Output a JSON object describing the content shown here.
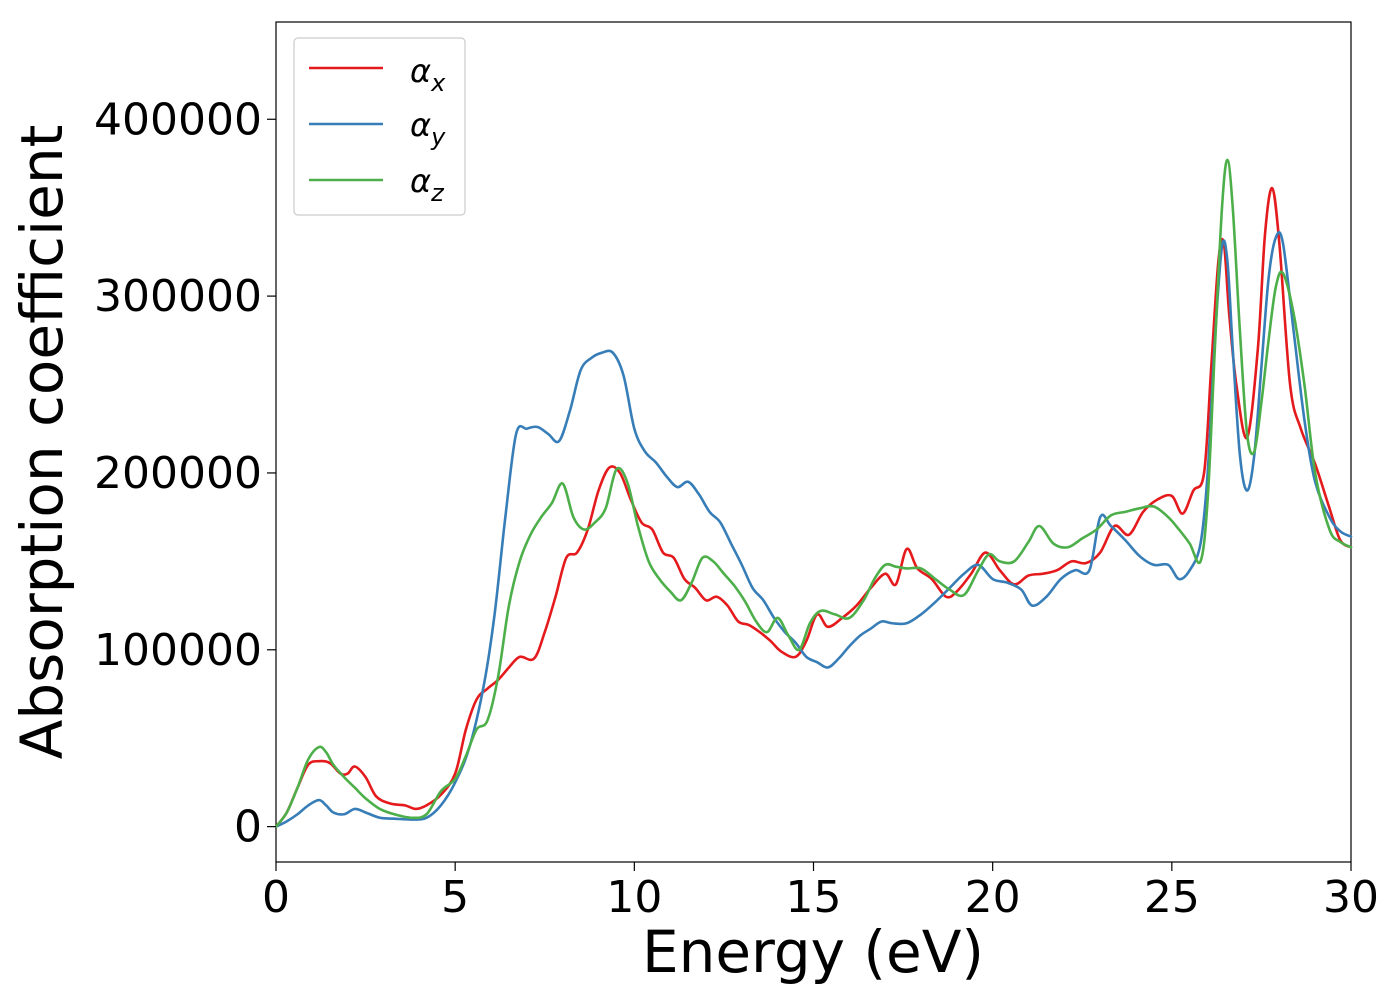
{
  "chart_data": {
    "type": "line",
    "title": "",
    "xlabel": "Energy (eV)",
    "ylabel": "Absorption coefficient",
    "xlim": [
      0,
      30
    ],
    "ylim": [
      -20000,
      455000
    ],
    "x_ticks": [
      0,
      5,
      10,
      15,
      20,
      25,
      30
    ],
    "y_ticks": [
      0,
      100000,
      200000,
      300000,
      400000
    ],
    "x_tick_labels": [
      "0",
      "5",
      "10",
      "15",
      "20",
      "25",
      "30"
    ],
    "y_tick_labels": [
      "0",
      "100000",
      "200000",
      "300000",
      "400000"
    ],
    "grid": false,
    "legend_position": "top-left",
    "series": [
      {
        "name": "α",
        "subscript": "x",
        "color": "#e41a1c",
        "x": [
          0,
          0.3,
          0.6,
          0.9,
          1.2,
          1.5,
          1.8,
          2.0,
          2.2,
          2.5,
          2.8,
          3.2,
          3.6,
          3.9,
          4.2,
          4.6,
          5.0,
          5.3,
          5.6,
          5.9,
          6.2,
          6.5,
          6.8,
          7.2,
          7.5,
          7.8,
          8.1,
          8.4,
          8.7,
          9.0,
          9.3,
          9.6,
          9.9,
          10.2,
          10.5,
          10.8,
          11.1,
          11.4,
          11.7,
          12.0,
          12.3,
          12.6,
          12.9,
          13.2,
          13.5,
          13.8,
          14.1,
          14.5,
          14.8,
          15.1,
          15.4,
          15.8,
          16.2,
          16.6,
          17.0,
          17.3,
          17.6,
          17.9,
          18.3,
          18.7,
          19.0,
          19.4,
          19.8,
          20.2,
          20.6,
          21.0,
          21.4,
          21.8,
          22.2,
          22.6,
          23.0,
          23.4,
          23.8,
          24.2,
          24.6,
          25.0,
          25.3,
          25.6,
          25.9,
          26.1,
          26.3,
          26.45,
          26.6,
          26.8,
          27.1,
          27.4,
          27.6,
          27.8,
          28.0,
          28.3,
          28.6,
          29.0,
          29.4,
          29.7,
          30.0
        ],
        "values": [
          0,
          8000,
          22000,
          35000,
          37000,
          36000,
          30000,
          30000,
          34000,
          28000,
          17000,
          13000,
          12000,
          10000,
          12000,
          18000,
          30000,
          55000,
          72000,
          78000,
          83000,
          90000,
          96000,
          95000,
          110000,
          130000,
          152000,
          155000,
          168000,
          190000,
          203000,
          200000,
          185000,
          172000,
          168000,
          155000,
          152000,
          140000,
          135000,
          128000,
          130000,
          125000,
          116000,
          114000,
          110000,
          105000,
          99000,
          96000,
          105000,
          120000,
          113000,
          118000,
          125000,
          135000,
          143000,
          137000,
          157000,
          146000,
          140000,
          130000,
          133000,
          143000,
          155000,
          145000,
          137000,
          142000,
          143000,
          145000,
          150000,
          149000,
          155000,
          170000,
          165000,
          178000,
          185000,
          187000,
          177000,
          190000,
          200000,
          260000,
          320000,
          330000,
          290000,
          250000,
          220000,
          270000,
          335000,
          361000,
          330000,
          250000,
          225000,
          205000,
          180000,
          162000,
          158000
        ]
      },
      {
        "name": "α",
        "subscript": "y",
        "color": "#377eb8",
        "x": [
          0,
          0.3,
          0.6,
          0.9,
          1.2,
          1.4,
          1.6,
          1.9,
          2.2,
          2.5,
          2.9,
          3.3,
          3.8,
          4.2,
          4.6,
          5.0,
          5.4,
          5.8,
          6.1,
          6.4,
          6.7,
          7.0,
          7.3,
          7.6,
          7.9,
          8.2,
          8.5,
          8.8,
          9.1,
          9.4,
          9.7,
          10.0,
          10.3,
          10.6,
          10.9,
          11.2,
          11.5,
          11.8,
          12.1,
          12.4,
          12.7,
          13.0,
          13.3,
          13.6,
          13.9,
          14.2,
          14.5,
          14.8,
          15.1,
          15.4,
          15.7,
          16.0,
          16.3,
          16.6,
          16.9,
          17.2,
          17.6,
          18.0,
          18.4,
          18.8,
          19.2,
          19.6,
          20.0,
          20.4,
          20.8,
          21.1,
          21.5,
          21.9,
          22.3,
          22.7,
          23.0,
          23.3,
          23.7,
          24.1,
          24.5,
          24.9,
          25.2,
          25.5,
          25.8,
          26.0,
          26.2,
          26.4,
          26.55,
          26.7,
          26.9,
          27.1,
          27.3,
          27.5,
          27.7,
          27.9,
          28.1,
          28.4,
          28.7,
          29.0,
          29.4,
          29.7,
          30.0
        ],
        "values": [
          0,
          3000,
          7000,
          12000,
          15000,
          12000,
          8000,
          7000,
          10000,
          8000,
          5000,
          4500,
          4000,
          5000,
          12000,
          25000,
          45000,
          80000,
          120000,
          175000,
          222000,
          225000,
          226000,
          222000,
          218000,
          235000,
          258000,
          265000,
          268000,
          268000,
          255000,
          225000,
          212000,
          206000,
          198000,
          192000,
          195000,
          188000,
          178000,
          172000,
          160000,
          148000,
          135000,
          128000,
          118000,
          110000,
          104000,
          96000,
          93000,
          90000,
          95000,
          102000,
          108000,
          112000,
          116000,
          115000,
          115000,
          120000,
          127000,
          135000,
          143000,
          148000,
          140000,
          138000,
          134000,
          125000,
          130000,
          140000,
          145000,
          145000,
          175000,
          170000,
          162000,
          153000,
          148000,
          148000,
          140000,
          145000,
          160000,
          200000,
          275000,
          328000,
          320000,
          270000,
          210000,
          190000,
          210000,
          260000,
          310000,
          333000,
          330000,
          280000,
          230000,
          195000,
          175000,
          167000,
          164000
        ]
      },
      {
        "name": "α",
        "subscript": "z",
        "color": "#4daf4a",
        "x": [
          0,
          0.3,
          0.6,
          0.9,
          1.2,
          1.4,
          1.6,
          1.9,
          2.2,
          2.5,
          2.9,
          3.3,
          3.8,
          4.2,
          4.6,
          5.0,
          5.3,
          5.6,
          5.9,
          6.2,
          6.5,
          6.8,
          7.1,
          7.4,
          7.7,
          8.0,
          8.3,
          8.6,
          8.9,
          9.2,
          9.5,
          9.8,
          10.1,
          10.4,
          10.7,
          11.0,
          11.3,
          11.6,
          11.9,
          12.2,
          12.5,
          12.8,
          13.1,
          13.4,
          13.7,
          14.0,
          14.3,
          14.6,
          14.9,
          15.2,
          15.6,
          16.0,
          16.4,
          16.7,
          17.0,
          17.3,
          17.6,
          18.0,
          18.4,
          18.8,
          19.2,
          19.6,
          19.9,
          20.2,
          20.6,
          21.0,
          21.3,
          21.7,
          22.1,
          22.5,
          22.9,
          23.3,
          23.7,
          24.1,
          24.5,
          24.9,
          25.2,
          25.5,
          25.8,
          26.0,
          26.2,
          26.4,
          26.55,
          26.7,
          26.9,
          27.1,
          27.3,
          27.5,
          27.7,
          27.9,
          28.1,
          28.4,
          28.7,
          29.0,
          29.4,
          29.7,
          30.0
        ],
        "values": [
          0,
          8000,
          22000,
          38000,
          45000,
          42000,
          35000,
          28000,
          22000,
          16000,
          10000,
          7000,
          5000,
          7000,
          20000,
          27000,
          40000,
          55000,
          60000,
          85000,
          125000,
          150000,
          165000,
          175000,
          183000,
          194000,
          175000,
          168000,
          172000,
          180000,
          202000,
          195000,
          170000,
          150000,
          140000,
          133000,
          128000,
          138000,
          152000,
          150000,
          143000,
          136000,
          127000,
          116000,
          110000,
          118000,
          108000,
          100000,
          115000,
          122000,
          120000,
          118000,
          128000,
          140000,
          148000,
          147000,
          146000,
          146000,
          140000,
          134000,
          131000,
          145000,
          154000,
          150000,
          150000,
          161000,
          170000,
          160000,
          158000,
          163000,
          168000,
          176000,
          178000,
          180000,
          181000,
          175000,
          168000,
          160000,
          150000,
          185000,
          270000,
          350000,
          377000,
          350000,
          280000,
          222000,
          212000,
          240000,
          275000,
          305000,
          313000,
          290000,
          250000,
          200000,
          168000,
          161000,
          158000
        ]
      }
    ]
  }
}
